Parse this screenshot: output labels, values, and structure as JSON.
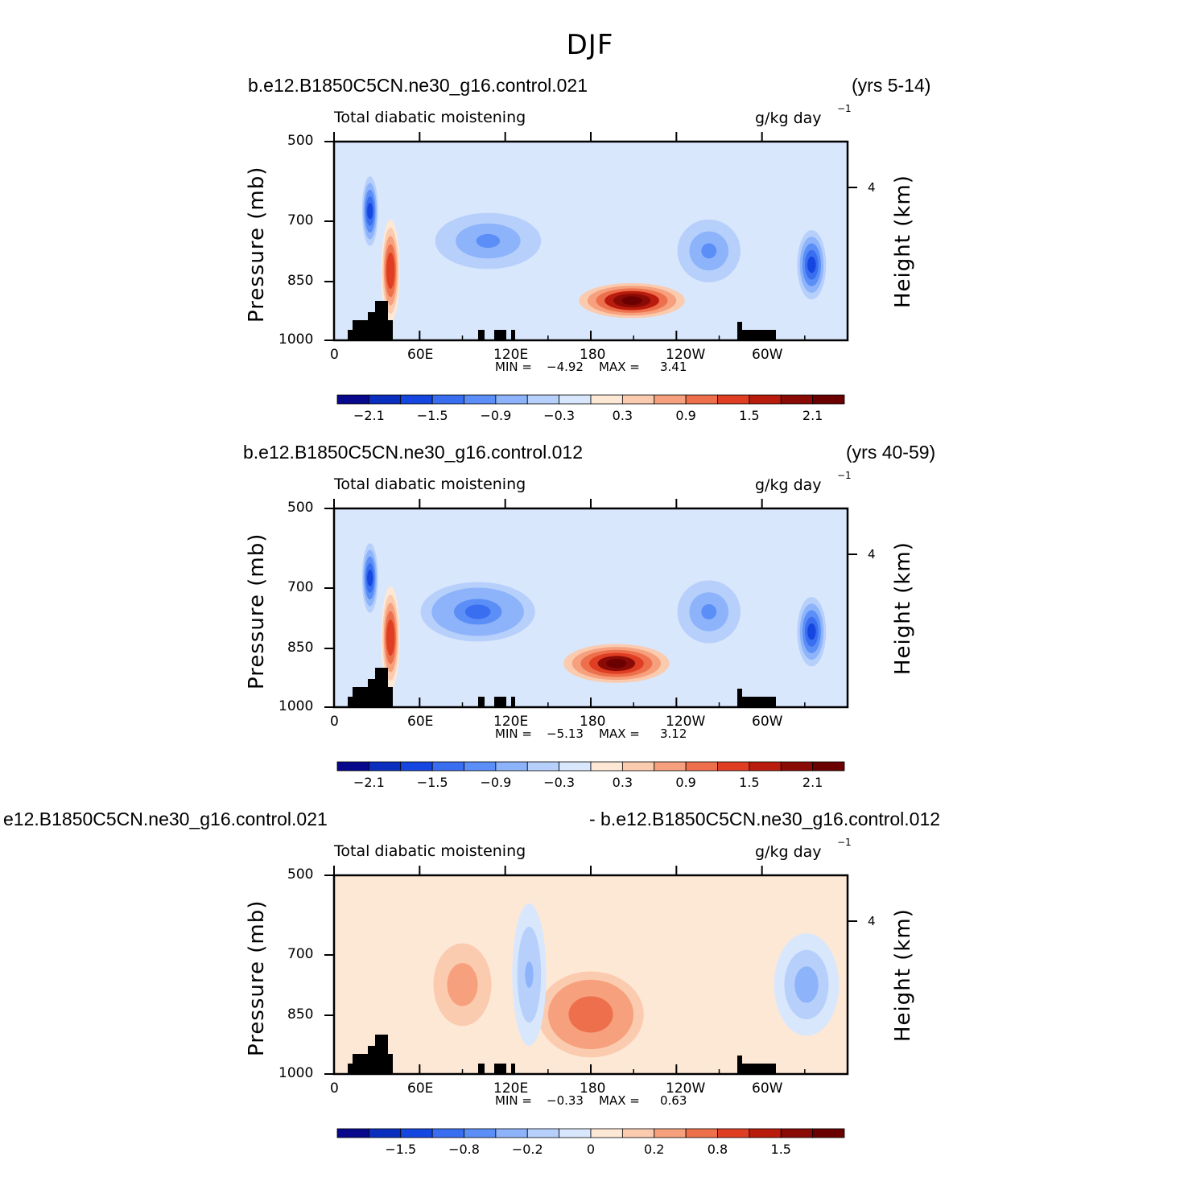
{
  "title": "DJF",
  "chart_data": [
    {
      "type": "heatmap",
      "case": "b.e12.B1850C5CN.ne30_g16.control.021",
      "years": "(yrs 5-14)",
      "title": "Total diabatic moistening",
      "units_main": "g/kg day",
      "units_exp": "−1",
      "ylabel": "Pressure (mb)",
      "ylabel_right": "Height (km)",
      "yticks": [
        "500",
        "700",
        "850",
        "1000"
      ],
      "yticks_right": [
        "4"
      ],
      "xticks": [
        "0",
        "60E",
        "120E",
        "180",
        "120W",
        "60W"
      ],
      "min_label": "MIN =",
      "min_value": "−4.92",
      "max_label": "MAX =",
      "max_value": "3.41",
      "colorbar_labels": [
        "−2.1",
        "−1.5",
        "−0.9",
        "−0.3",
        "0.3",
        "0.9",
        "1.5",
        "2.1"
      ],
      "features": [
        {
          "x": 0.58,
          "y": 0.8,
          "value": 2.4,
          "rx": 0.1,
          "ry": 0.08
        },
        {
          "x": 0.73,
          "y": 0.55,
          "value": -0.9,
          "rx": 0.07,
          "ry": 0.18
        },
        {
          "x": 0.93,
          "y": 0.62,
          "value": -1.5,
          "rx": 0.03,
          "ry": 0.2
        },
        {
          "x": 0.3,
          "y": 0.5,
          "value": -0.9,
          "rx": 0.12,
          "ry": 0.16
        },
        {
          "x": 0.07,
          "y": 0.35,
          "value": -1.5,
          "rx": 0.015,
          "ry": 0.2
        },
        {
          "x": 0.11,
          "y": 0.65,
          "value": 1.5,
          "rx": 0.015,
          "ry": 0.25
        }
      ]
    },
    {
      "type": "heatmap",
      "case": "b.e12.B1850C5CN.ne30_g16.control.012",
      "years": "(yrs 40-59)",
      "title": "Total diabatic moistening",
      "units_main": "g/kg day",
      "units_exp": "−1",
      "ylabel": "Pressure (mb)",
      "ylabel_right": "Height (km)",
      "yticks": [
        "500",
        "700",
        "850",
        "1000"
      ],
      "yticks_right": [
        "4"
      ],
      "xticks": [
        "0",
        "60E",
        "120E",
        "180",
        "120W",
        "60W"
      ],
      "min_label": "MIN =",
      "min_value": "−5.13",
      "max_label": "MAX =",
      "max_value": "3.12",
      "colorbar_labels": [
        "−2.1",
        "−1.5",
        "−0.9",
        "−0.3",
        "0.3",
        "0.9",
        "1.5",
        "2.1"
      ],
      "features": [
        {
          "x": 0.55,
          "y": 0.78,
          "value": 2.2,
          "rx": 0.1,
          "ry": 0.09
        },
        {
          "x": 0.73,
          "y": 0.52,
          "value": -0.9,
          "rx": 0.07,
          "ry": 0.18
        },
        {
          "x": 0.93,
          "y": 0.62,
          "value": -1.5,
          "rx": 0.03,
          "ry": 0.2
        },
        {
          "x": 0.28,
          "y": 0.52,
          "value": -1.2,
          "rx": 0.13,
          "ry": 0.17
        },
        {
          "x": 0.07,
          "y": 0.35,
          "value": -1.5,
          "rx": 0.015,
          "ry": 0.2
        },
        {
          "x": 0.11,
          "y": 0.65,
          "value": 1.5,
          "rx": 0.015,
          "ry": 0.25
        }
      ]
    },
    {
      "type": "heatmap",
      "case": "e12.B1850C5CN.ne30_g16.control.021",
      "years": "- b.e12.B1850C5CN.ne30_g16.control.012",
      "title": "Total diabatic moistening",
      "units_main": "g/kg day",
      "units_exp": "−1",
      "ylabel": "Pressure (mb)",
      "ylabel_right": "Height (km)",
      "yticks": [
        "500",
        "700",
        "850",
        "1000"
      ],
      "yticks_right": [
        "4"
      ],
      "xticks": [
        "0",
        "60E",
        "120E",
        "180",
        "120W",
        "60W"
      ],
      "min_label": "MIN =",
      "min_value": "−0.33",
      "max_label": "MAX =",
      "max_value": "0.63",
      "colorbar_labels": [
        "−1.5",
        "−0.8",
        "−0.2",
        "0",
        "0.2",
        "0.8",
        "1.5"
      ],
      "features": [
        {
          "x": 0.5,
          "y": 0.7,
          "value": 0.5,
          "rx": 0.12,
          "ry": 0.25
        },
        {
          "x": 0.25,
          "y": 0.55,
          "value": 0.3,
          "rx": 0.08,
          "ry": 0.3
        },
        {
          "x": 0.92,
          "y": 0.55,
          "value": -0.3,
          "rx": 0.06,
          "ry": 0.25
        },
        {
          "x": 0.38,
          "y": 0.5,
          "value": -0.2,
          "rx": 0.03,
          "ry": 0.35
        }
      ]
    }
  ]
}
